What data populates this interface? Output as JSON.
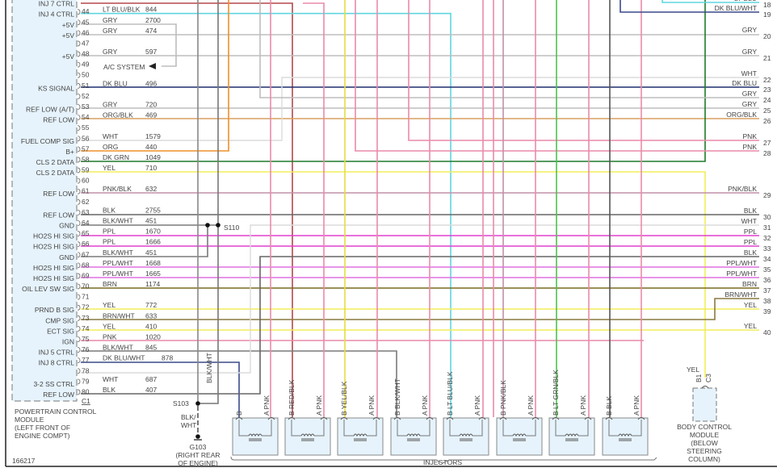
{
  "colors": {
    "RED/BLK": "#b5474a",
    "LT BLU/BLK": "#5fd6e0",
    "GRY": "#bdbdbd",
    "DK BLU": "#1e2f6e",
    "ORG/BLK": "#d9a060",
    "WHT": "#dcdcdc",
    "ORG": "#f0902a",
    "DK GRN": "#1f7a2a",
    "YEL": "#f2ee5a",
    "PNK/BLK": "#c290a8",
    "BLK": "#666666",
    "BLK/WHT": "#7a7a7a",
    "PPL": "#e040d0",
    "PPL/WHT": "#e070e0",
    "BRN": "#7a6a20",
    "BRN/WHT": "#8a7a40",
    "PNK": "#ea8aa8",
    "DK BLU/WHT": "#3a4a8a",
    "LT GRN/BLK": "#4cc24c",
    "YEL/BLK": "#e4de40",
    "module_fill": "#e6f3fc"
  },
  "pcm": {
    "pins": [
      {
        "pin": "",
        "label": "INJ 7 CTRL",
        "wire": "RED/BLK",
        "circuit": ""
      },
      {
        "pin": "44",
        "label": "INJ 4 CTRL",
        "wire": "LT BLU/BLK",
        "circuit": "844"
      },
      {
        "pin": "45",
        "label": "+5V",
        "wire": "GRY",
        "circuit": "2700"
      },
      {
        "pin": "46",
        "label": "+5V",
        "wire": "GRY",
        "circuit": "474"
      },
      {
        "pin": "47",
        "label": "",
        "wire": "",
        "circuit": ""
      },
      {
        "pin": "48",
        "label": "+5V",
        "wire": "GRY",
        "circuit": "597"
      },
      {
        "pin": "49",
        "label": "",
        "wire": "",
        "circuit": ""
      },
      {
        "pin": "50",
        "label": "",
        "wire": "",
        "circuit": ""
      },
      {
        "pin": "51",
        "label": "KS SIGNAL",
        "wire": "DK BLU",
        "circuit": "496"
      },
      {
        "pin": "52",
        "label": "",
        "wire": "",
        "circuit": ""
      },
      {
        "pin": "53",
        "label": "REF LOW (A/T)",
        "wire": "GRY",
        "circuit": "720"
      },
      {
        "pin": "54",
        "label": "REF LOW",
        "wire": "ORG/BLK",
        "circuit": "469"
      },
      {
        "pin": "55",
        "label": "",
        "wire": "",
        "circuit": ""
      },
      {
        "pin": "56",
        "label": "FUEL COMP SIG",
        "wire": "WHT",
        "circuit": "1579"
      },
      {
        "pin": "57",
        "label": "B+",
        "wire": "ORG",
        "circuit": "440"
      },
      {
        "pin": "58",
        "label": "CLS 2 DATA",
        "wire": "DK GRN",
        "circuit": "1049"
      },
      {
        "pin": "59",
        "label": "CLS 2 DATA",
        "wire": "YEL",
        "circuit": "710"
      },
      {
        "pin": "60",
        "label": "",
        "wire": "",
        "circuit": ""
      },
      {
        "pin": "61",
        "label": "REF LOW",
        "wire": "PNK/BLK",
        "circuit": "632"
      },
      {
        "pin": "62",
        "label": "",
        "wire": "",
        "circuit": ""
      },
      {
        "pin": "63",
        "label": "REF LOW",
        "wire": "BLK",
        "circuit": "2755"
      },
      {
        "pin": "64",
        "label": "GND",
        "wire": "BLK/WHT",
        "circuit": "451"
      },
      {
        "pin": "65",
        "label": "HO2S HI SIG",
        "wire": "PPL",
        "circuit": "1670"
      },
      {
        "pin": "66",
        "label": "HO2S HI SIG",
        "wire": "PPL",
        "circuit": "1666"
      },
      {
        "pin": "67",
        "label": "GND",
        "wire": "BLK/WHT",
        "circuit": "451"
      },
      {
        "pin": "68",
        "label": "HO2S HI SIG",
        "wire": "PPL/WHT",
        "circuit": "1668"
      },
      {
        "pin": "69",
        "label": "HO2S HI SIG",
        "wire": "PPL/WHT",
        "circuit": "1665"
      },
      {
        "pin": "70",
        "label": "OIL LEV SW SIG",
        "wire": "BRN",
        "circuit": "1174"
      },
      {
        "pin": "71",
        "label": "",
        "wire": "",
        "circuit": ""
      },
      {
        "pin": "72",
        "label": "PRND B SIG",
        "wire": "YEL",
        "circuit": "772"
      },
      {
        "pin": "73",
        "label": "CMP SIG",
        "wire": "BRN/WHT",
        "circuit": "633"
      },
      {
        "pin": "74",
        "label": "ECT SIG",
        "wire": "YEL",
        "circuit": "410"
      },
      {
        "pin": "75",
        "label": "IGN",
        "wire": "PNK",
        "circuit": "1020"
      },
      {
        "pin": "76",
        "label": "INJ 5 CTRL",
        "wire": "BLK/WHT",
        "circuit": "845"
      },
      {
        "pin": "77",
        "label": "INJ 8 CTRL",
        "wire": "DK BLU/WHT",
        "circuit": "878"
      },
      {
        "pin": "78",
        "label": "",
        "wire": "",
        "circuit": ""
      },
      {
        "pin": "79",
        "label": "3-2 SS CTRL",
        "wire": "WHT",
        "circuit": "687"
      },
      {
        "pin": "80",
        "label": "REF LOW",
        "wire": "BLK",
        "circuit": "407"
      }
    ],
    "connector": "C1",
    "name_lines": [
      "POWERTRAIN CONTROL",
      "MODULE",
      "(LEFT FRONT OF",
      "ENGINE COMPT)"
    ]
  },
  "ac_system": "A/C SYSTEM",
  "right_terminals": [
    {
      "num": "18",
      "wire": "LT BLU"
    },
    {
      "num": "19",
      "wire": "DK BLU/WHT"
    },
    {
      "num": "20",
      "wire": "GRY"
    },
    {
      "num": "21",
      "wire": "GRY"
    },
    {
      "num": "22",
      "wire": "WHT"
    },
    {
      "num": "23",
      "wire": "DK BLU"
    },
    {
      "num": "24",
      "wire": "GRY"
    },
    {
      "num": "25",
      "wire": "GRY"
    },
    {
      "num": "26",
      "wire": "ORG/BLK"
    },
    {
      "num": "27",
      "wire": "PNK"
    },
    {
      "num": "28",
      "wire": "PNK"
    },
    {
      "num": "29",
      "wire": "PNK/BLK"
    },
    {
      "num": "30",
      "wire": "BLK"
    },
    {
      "num": "31",
      "wire": "WHT"
    },
    {
      "num": "32",
      "wire": "PPL"
    },
    {
      "num": "33",
      "wire": "PPL"
    },
    {
      "num": "34",
      "wire": "BLK"
    },
    {
      "num": "35",
      "wire": "PPL/WHT"
    },
    {
      "num": "36",
      "wire": "PPL/WHT"
    },
    {
      "num": "37",
      "wire": "BRN"
    },
    {
      "num": "38",
      "wire": "BRN/WHT"
    },
    {
      "num": "39",
      "wire": "YEL"
    },
    {
      "num": "40",
      "wire": "YEL"
    }
  ],
  "splices": {
    "s110": "S110",
    "s103": "S103",
    "splice_wire": "BLK/WHT",
    "ground_wire": "BLK/WHT",
    "ground": "G103",
    "ground_location": [
      "(RIGHT REAR",
      "OF ENGINE)"
    ]
  },
  "injectors": {
    "title": "INJECTORS",
    "items": [
      {
        "num": "8",
        "b_label": "B",
        "b_wire": "DK BLU/WHT",
        "a_label": "A PNK"
      },
      {
        "num": "7",
        "b_label": "B RED/BLK",
        "b_wire": "RED/BLK",
        "a_label": "A PNK"
      },
      {
        "num": "6",
        "b_label": "B YEL/BLK",
        "b_wire": "YEL/BLK",
        "a_label": "A PNK"
      },
      {
        "num": "5",
        "b_label": "B BLK/WHT",
        "b_wire": "BLK/WHT",
        "a_label": "A PNK"
      },
      {
        "num": "4",
        "b_label": "B LT BLU/BLK",
        "b_wire": "LT BLU/BLK",
        "a_label": "A PNK"
      },
      {
        "num": "3",
        "b_label": "B PNK/BLK",
        "b_wire": "PNK/BLK",
        "a_label": "A PNK"
      },
      {
        "num": "2",
        "b_label": "B LT GRN/BLK",
        "b_wire": "LT GRN/BLK",
        "a_label": "A PNK"
      },
      {
        "num": "1",
        "b_label": "B BLK",
        "b_wire": "BLK",
        "a_label": "A PNK"
      }
    ]
  },
  "bcm": {
    "wire": "YEL",
    "pin_b": "B1",
    "pin_c": "C3",
    "name_lines": [
      "BODY CONTROL",
      "MODULE",
      "(BELOW",
      "STEERING",
      "COLUMN)"
    ]
  },
  "figure_id": "166217"
}
